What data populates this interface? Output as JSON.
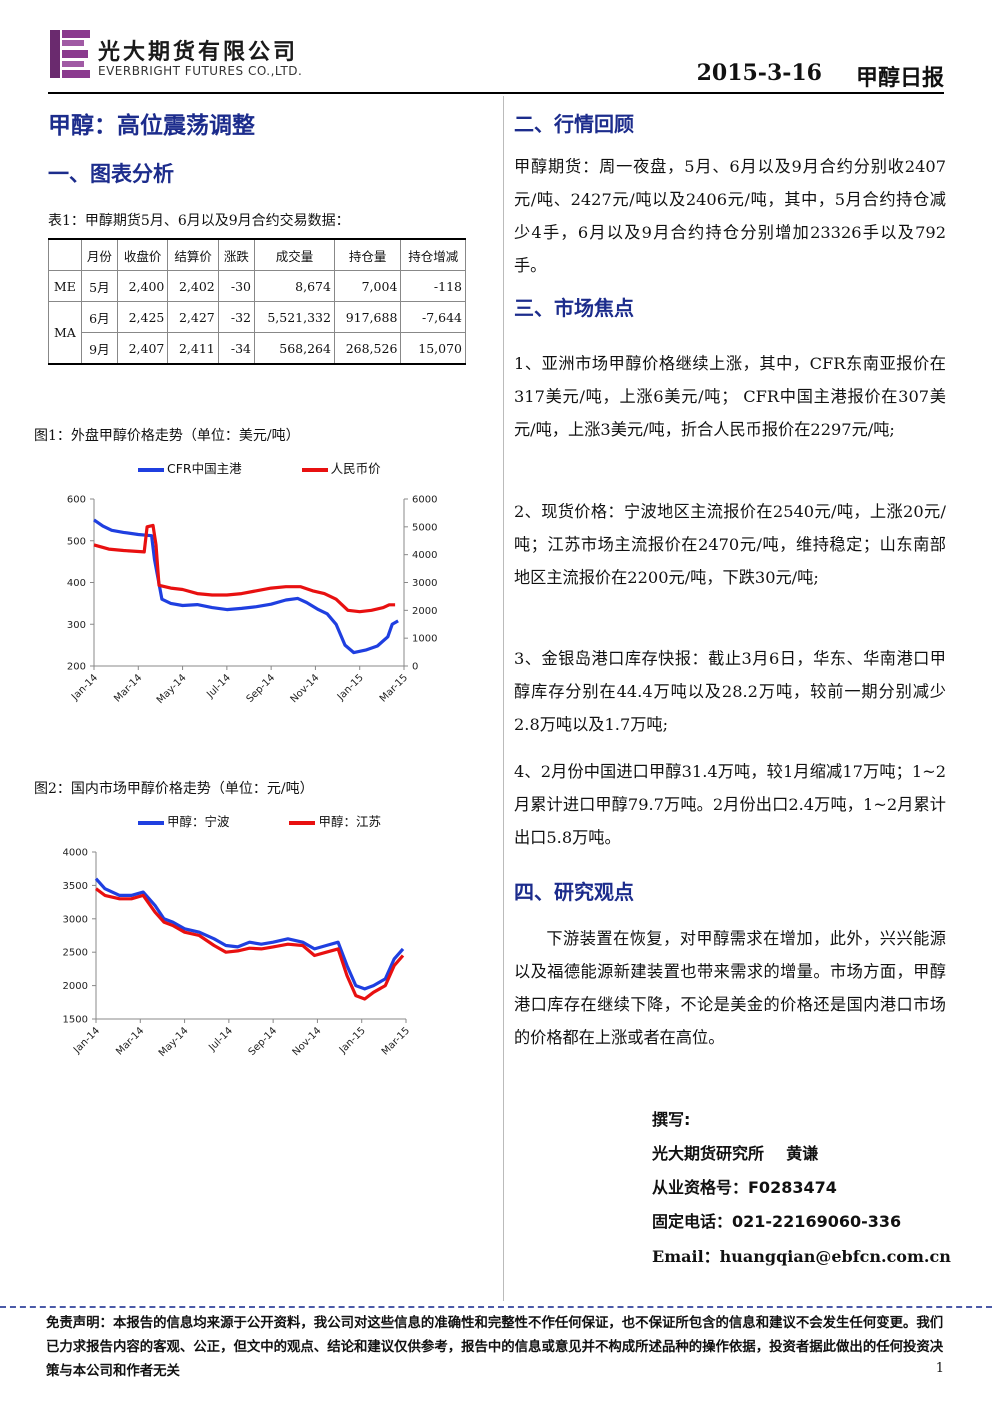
{
  "header": {
    "company_cn": "光大期货有限公司",
    "company_en": "EVERBRIGHT FUTURES CO.,LTD.",
    "date": "2015-3-16",
    "report_name": "甲醇日报"
  },
  "left": {
    "title": "甲醇：高位震荡调整",
    "section1": "一、图表分析",
    "table_caption": "表1：甲醇期货5月、6月以及9月合约交易数据：",
    "table": {
      "headers": [
        "",
        "月份",
        "收盘价",
        "结算价",
        "涨跌",
        "成交量",
        "持仓量",
        "持仓增减"
      ],
      "groups": [
        {
          "name": "ME",
          "rows": [
            [
              "5月",
              "2,400",
              "2,402",
              "-30",
              "8,674",
              "7,004",
              "-118"
            ]
          ]
        },
        {
          "name": "MA",
          "rows": [
            [
              "6月",
              "2,425",
              "2,427",
              "-32",
              "5,521,332",
              "917,688",
              "-7,644"
            ],
            [
              "9月",
              "2,407",
              "2,411",
              "-34",
              "568,264",
              "268,526",
              "15,070"
            ]
          ]
        }
      ]
    },
    "fig1_caption": "图1：外盘甲醇价格走势（单位：美元/吨）",
    "fig2_caption": "图2：国内市场甲醇价格走势（单位：元/吨）"
  },
  "chart_data": [
    {
      "type": "line",
      "title": "",
      "x": [
        "Jan-14",
        "Mar-14",
        "May-14",
        "Jul-14",
        "Sep-14",
        "Nov-14",
        "Jan-15",
        "Mar-15"
      ],
      "xlabel": "",
      "ylabel": "",
      "ylim": [
        200,
        600
      ],
      "y2lim": [
        0,
        6000
      ],
      "yticks": [
        "600",
        "500",
        "400",
        "300",
        "200"
      ],
      "y2ticks": [
        "6000",
        "5000",
        "4000",
        "3000",
        "2000",
        "1000",
        "0"
      ],
      "legend": "top",
      "series": [
        {
          "name": "CFR中国主港",
          "axis": "left",
          "color": "#1f3fe0",
          "points": [
            [
              0,
              550
            ],
            [
              0.3,
              535
            ],
            [
              0.6,
              525
            ],
            [
              1.0,
              520
            ],
            [
              1.5,
              515
            ],
            [
              1.95,
              512
            ],
            [
              2.05,
              455
            ],
            [
              2.3,
              360
            ],
            [
              2.6,
              350
            ],
            [
              3.0,
              345
            ],
            [
              3.5,
              347
            ],
            [
              4.0,
              340
            ],
            [
              4.5,
              335
            ],
            [
              5.0,
              338
            ],
            [
              5.5,
              342
            ],
            [
              6.0,
              348
            ],
            [
              6.5,
              358
            ],
            [
              6.9,
              362
            ],
            [
              7.2,
              352
            ],
            [
              7.6,
              335
            ],
            [
              7.9,
              325
            ],
            [
              8.2,
              300
            ],
            [
              8.5,
              250
            ],
            [
              8.8,
              232
            ],
            [
              9.2,
              238
            ],
            [
              9.6,
              248
            ],
            [
              9.95,
              270
            ],
            [
              10.1,
              300
            ],
            [
              10.3,
              308
            ]
          ]
        },
        {
          "name": "人民币价",
          "axis": "right",
          "color": "#e81010",
          "points": [
            [
              0,
              4350
            ],
            [
              0.5,
              4200
            ],
            [
              1.0,
              4150
            ],
            [
              1.7,
              4100
            ],
            [
              1.8,
              5000
            ],
            [
              2.0,
              5050
            ],
            [
              2.1,
              4350
            ],
            [
              2.2,
              2900
            ],
            [
              2.6,
              2800
            ],
            [
              3.0,
              2750
            ],
            [
              3.5,
              2600
            ],
            [
              4.0,
              2550
            ],
            [
              4.5,
              2550
            ],
            [
              5.0,
              2600
            ],
            [
              5.5,
              2700
            ],
            [
              6.0,
              2800
            ],
            [
              6.5,
              2850
            ],
            [
              7.0,
              2850
            ],
            [
              7.4,
              2700
            ],
            [
              7.8,
              2600
            ],
            [
              8.2,
              2400
            ],
            [
              8.6,
              2000
            ],
            [
              9.0,
              1950
            ],
            [
              9.4,
              2000
            ],
            [
              9.8,
              2100
            ],
            [
              10.0,
              2200
            ],
            [
              10.2,
              2200
            ]
          ]
        }
      ]
    },
    {
      "type": "line",
      "title": "",
      "x": [
        "Jan-14",
        "Mar-14",
        "May-14",
        "Jul-14",
        "Sep-14",
        "Nov-14",
        "Jan-15",
        "Mar-15"
      ],
      "xlabel": "",
      "ylabel": "",
      "ylim": [
        1500,
        4000
      ],
      "yticks": [
        "4000",
        "3500",
        "3000",
        "2500",
        "2000",
        "1500"
      ],
      "legend": "top",
      "series": [
        {
          "name": "甲醇：宁波",
          "axis": "left",
          "color": "#1f3fe0",
          "points": [
            [
              0,
              3600
            ],
            [
              0.3,
              3450
            ],
            [
              0.8,
              3350
            ],
            [
              1.2,
              3350
            ],
            [
              1.6,
              3400
            ],
            [
              2.0,
              3200
            ],
            [
              2.3,
              3000
            ],
            [
              2.6,
              2950
            ],
            [
              3.0,
              2850
            ],
            [
              3.5,
              2800
            ],
            [
              4.0,
              2700
            ],
            [
              4.4,
              2600
            ],
            [
              4.8,
              2580
            ],
            [
              5.2,
              2650
            ],
            [
              5.6,
              2620
            ],
            [
              6.0,
              2650
            ],
            [
              6.5,
              2700
            ],
            [
              7.0,
              2650
            ],
            [
              7.4,
              2550
            ],
            [
              7.8,
              2600
            ],
            [
              8.2,
              2650
            ],
            [
              8.5,
              2300
            ],
            [
              8.8,
              2000
            ],
            [
              9.1,
              1950
            ],
            [
              9.4,
              2000
            ],
            [
              9.8,
              2100
            ],
            [
              10.1,
              2400
            ],
            [
              10.4,
              2550
            ]
          ]
        },
        {
          "name": "甲醇：江苏",
          "axis": "left",
          "color": "#e81010",
          "points": [
            [
              0,
              3450
            ],
            [
              0.3,
              3350
            ],
            [
              0.8,
              3300
            ],
            [
              1.2,
              3300
            ],
            [
              1.6,
              3350
            ],
            [
              2.0,
              3100
            ],
            [
              2.3,
              2950
            ],
            [
              2.6,
              2900
            ],
            [
              3.0,
              2800
            ],
            [
              3.5,
              2750
            ],
            [
              4.0,
              2600
            ],
            [
              4.4,
              2500
            ],
            [
              4.8,
              2520
            ],
            [
              5.2,
              2560
            ],
            [
              5.6,
              2550
            ],
            [
              6.0,
              2580
            ],
            [
              6.5,
              2620
            ],
            [
              7.0,
              2600
            ],
            [
              7.4,
              2450
            ],
            [
              7.8,
              2500
            ],
            [
              8.2,
              2550
            ],
            [
              8.5,
              2150
            ],
            [
              8.8,
              1850
            ],
            [
              9.1,
              1800
            ],
            [
              9.4,
              1900
            ],
            [
              9.8,
              2000
            ],
            [
              10.1,
              2300
            ],
            [
              10.4,
              2450
            ]
          ]
        }
      ]
    }
  ],
  "right": {
    "section2": "二、行情回顾",
    "review": "甲醇期货：周一夜盘，5月、6月以及9月合约分别收2407元/吨、2427元/吨以及2406元/吨，其中，5月合约持仓减少4手，6月以及9月合约持仓分别增加23326手以及792手。",
    "section3": "三、市场焦点",
    "focus": [
      "1、亚洲市场甲醇价格继续上涨，其中，CFR东南亚报价在317美元/吨，上涨6美元/吨； CFR中国主港报价在307美元/吨，上涨3美元/吨，折合人民币报价在2297元/吨;",
      "2、现货价格：宁波地区主流报价在2540元/吨，上涨20元/吨；江苏市场主流报价在2470元/吨，维持稳定；山东南部地区主流报价在2200元/吨，下跌30元/吨;",
      "3、金银岛港口库存快报：截止3月6日，华东、华南港口甲醇库存分别在44.4万吨以及28.2万吨，较前一期分别减少2.8万吨以及1.7万吨;",
      "4、2月份中国进口甲醇31.4万吨，较1月缩减17万吨；1~2月累计进口甲醇79.7万吨。2月份出口2.4万吨，1~2月累计出口5.8万吨。"
    ],
    "section4": "四、研究观点",
    "view": "下游装置在恢复，对甲醇需求在增加，此外，兴兴能源以及福德能源新建装置也带来需求的增量。市场方面，甲醇港口库存在继续下降，不论是美金的价格还是国内港口市场的价格都在上涨或者在高位。",
    "author_label": "撰写:",
    "author_org": "光大期货研究所    黄谦",
    "license": "从业资格号：F0283474",
    "phone": "固定电话：021-22169060-336",
    "email": "Email：huangqian@ebfcn.com.cn"
  },
  "footer": {
    "disclaimer": "免责声明：本报告的信息均来源于公开资料，我公司对这些信息的准确性和完整性不作任何保证，也不保证所包含的信息和建议不会发生任何变更。我们已力求报告内容的客观、公正，但文中的观点、结论和建议仅供参考，报告中的信息或意见并不构成所述品种的操作依据，投资者据此做出的任何投资决策与本公司和作者无关",
    "page": "1"
  }
}
